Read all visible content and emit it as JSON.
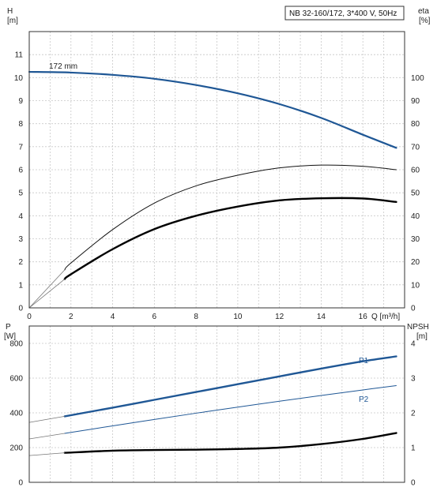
{
  "chart_data": [
    {
      "type": "line",
      "title": "NB 32-160/172, 3*400 V, 50Hz",
      "curve_label": "172 mm",
      "xlabel": "Q [m³/h]",
      "ylabel_left": "H",
      "ylabel_left_unit": "[m]",
      "ylabel_right": "eta",
      "ylabel_right_unit": "[%]",
      "xlim": [
        0,
        18
      ],
      "ylim_left": [
        0,
        12
      ],
      "ylim_right": [
        0,
        120
      ],
      "x_ticks": [
        0,
        2,
        4,
        6,
        8,
        10,
        12,
        14,
        16
      ],
      "y_ticks_left": [
        0,
        1,
        2,
        3,
        4,
        5,
        6,
        7,
        8,
        9,
        10,
        11
      ],
      "y_ticks_right": [
        0,
        10,
        20,
        30,
        40,
        50,
        60,
        70,
        80,
        90,
        100
      ],
      "grid": true,
      "series": [
        {
          "name": "",
          "axis": "left",
          "color": "#1f5795",
          "x": [
            0,
            2,
            4,
            6,
            8,
            10,
            12,
            14,
            16,
            17.6
          ],
          "y": [
            10.25,
            10.22,
            10.12,
            9.95,
            9.68,
            9.32,
            8.85,
            8.25,
            7.52,
            6.95
          ]
        },
        {
          "name": "",
          "axis": "right",
          "color": "#111111",
          "style": "thin",
          "x": [
            1.7,
            2,
            4,
            6,
            8,
            10,
            12,
            14,
            16,
            17.6
          ],
          "y": [
            16.5,
            19.5,
            34,
            45.5,
            53,
            57.6,
            60.8,
            62,
            61.5,
            60
          ]
        },
        {
          "name": "",
          "axis": "left",
          "color": "#000000",
          "style": "bold",
          "x": [
            1.7,
            2,
            4,
            6,
            8,
            10,
            12,
            14,
            16,
            17.6
          ],
          "y": [
            1.25,
            1.46,
            2.55,
            3.42,
            4.0,
            4.4,
            4.67,
            4.76,
            4.75,
            4.6
          ]
        }
      ],
      "extrapolations": [
        {
          "axis": "right",
          "x": [
            0,
            1.7
          ],
          "y": [
            0,
            16.5
          ]
        },
        {
          "axis": "left",
          "x": [
            0,
            1.7
          ],
          "y": [
            0,
            1.25
          ]
        }
      ]
    },
    {
      "type": "line",
      "ylabel_left": "P",
      "ylabel_left_unit": "[W]",
      "ylabel_right": "NPSH",
      "ylabel_right_unit": "[m]",
      "xlim": [
        0,
        18
      ],
      "ylim_left": [
        0,
        900
      ],
      "ylim_right": [
        0,
        4.5
      ],
      "y_ticks_left": [
        0,
        200,
        400,
        600,
        800
      ],
      "y_ticks_right": [
        0,
        1,
        2,
        3,
        4
      ],
      "grid": true,
      "series": [
        {
          "name": "P1",
          "axis": "left",
          "color": "#1f5795",
          "style": "bold",
          "x": [
            1.7,
            4,
            6,
            8,
            10,
            12,
            14,
            16,
            17.6
          ],
          "y": [
            380,
            430,
            475,
            520,
            565,
            610,
            655,
            697,
            725
          ]
        },
        {
          "name": "P2",
          "axis": "left",
          "color": "#1f5795",
          "style": "thin",
          "x": [
            1.7,
            4,
            6,
            8,
            10,
            12,
            14,
            16,
            17.6
          ],
          "y": [
            282,
            325,
            362,
            398,
            433,
            467,
            500,
            532,
            557
          ]
        },
        {
          "name": "",
          "axis": "right",
          "color": "#000000",
          "style": "bold",
          "x": [
            1.7,
            4,
            6,
            8,
            10,
            12,
            14,
            16,
            17.6
          ],
          "y": [
            0.85,
            0.91,
            0.93,
            0.94,
            0.96,
            1.0,
            1.1,
            1.25,
            1.42
          ]
        }
      ],
      "extrapolations": [
        {
          "axis": "left",
          "x": [
            0,
            1.7
          ],
          "y": [
            345,
            380
          ]
        },
        {
          "axis": "left",
          "x": [
            0,
            1.7
          ],
          "y": [
            250,
            282
          ]
        },
        {
          "axis": "right",
          "x": [
            0,
            1.7
          ],
          "y": [
            0.77,
            0.85
          ]
        }
      ]
    }
  ]
}
